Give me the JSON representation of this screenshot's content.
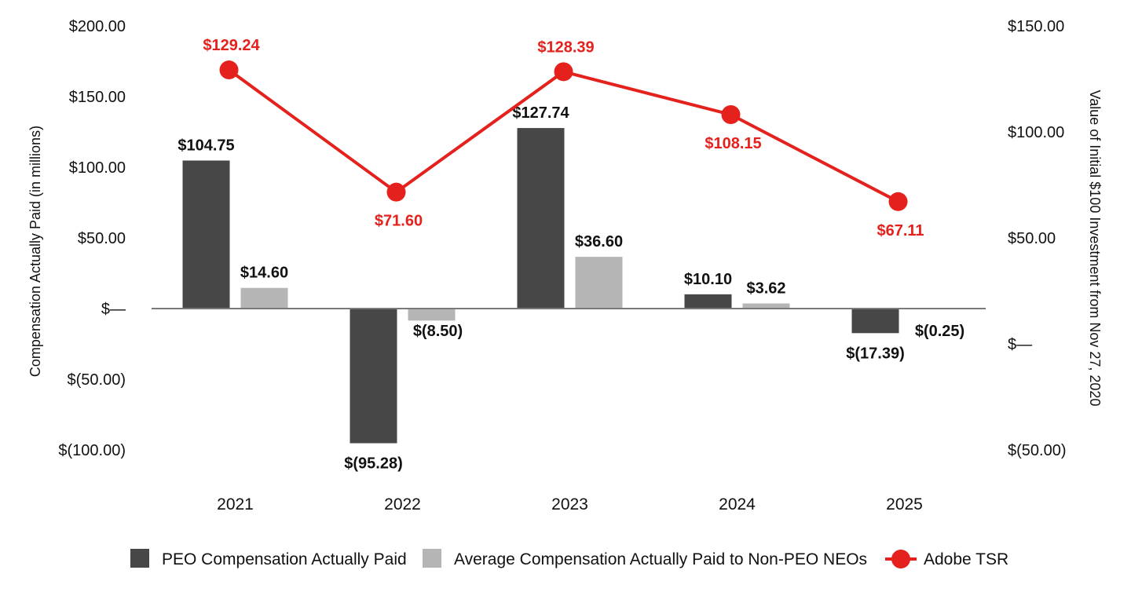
{
  "chart_data": {
    "type": "bar",
    "categories": [
      "2021",
      "2022",
      "2023",
      "2024",
      "2025"
    ],
    "y_left": {
      "label": "Compensation Actually Paid (in millions)",
      "ylim": [
        -100,
        200
      ],
      "ticks": [
        {
          "value": 200,
          "label": "$200.00"
        },
        {
          "value": 150,
          "label": "$150.00"
        },
        {
          "value": 100,
          "label": "$100.00"
        },
        {
          "value": 50,
          "label": "$50.00"
        },
        {
          "value": 0,
          "label": "$—"
        },
        {
          "value": -50,
          "label": "$(50.00)"
        },
        {
          "value": -100,
          "label": "$(100.00)"
        }
      ]
    },
    "y_right": {
      "label": "Value of Initial $100 Investment from Nov 27, 2020",
      "ylim": [
        -50,
        150
      ],
      "ticks": [
        {
          "value": 150,
          "label": "$150.00"
        },
        {
          "value": 100,
          "label": "$100.00"
        },
        {
          "value": 50,
          "label": "$50.00"
        },
        {
          "value": 0,
          "label": "$—"
        },
        {
          "value": -50,
          "label": "$(50.00)"
        }
      ]
    },
    "series": [
      {
        "name": "PEO Compensation Actually Paid",
        "type": "bar",
        "axis": "left",
        "color": "#474747",
        "values": [
          104.75,
          -95.28,
          127.74,
          10.1,
          -17.39
        ],
        "labels": [
          "$104.75",
          "$(95.28)",
          "$127.74",
          "$10.10",
          "$(17.39)"
        ]
      },
      {
        "name": "Average Compensation Actually Paid to Non-PEO NEOs",
        "type": "bar",
        "axis": "left",
        "color": "#b5b5b5",
        "values": [
          14.6,
          -8.5,
          36.6,
          3.62,
          -0.25
        ],
        "labels": [
          "$14.60",
          "$(8.50)",
          "$36.60",
          "$3.62",
          "$(0.25)"
        ]
      },
      {
        "name": "Adobe TSR",
        "type": "line",
        "axis": "right",
        "color": "#e4211c",
        "values": [
          129.24,
          71.6,
          128.39,
          108.15,
          67.11
        ],
        "labels": [
          "$129.24",
          "$71.60",
          "$128.39",
          "$108.15",
          "$67.11"
        ]
      }
    ],
    "grid": false,
    "legend_position": "bottom-center"
  }
}
